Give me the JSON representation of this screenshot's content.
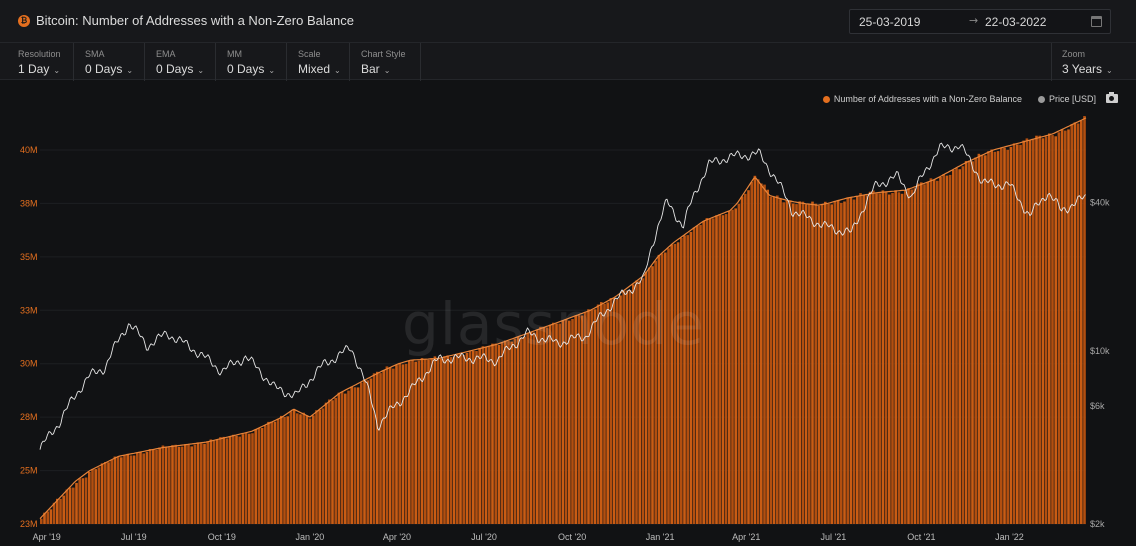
{
  "header": {
    "title": "Bitcoin: Number of Addresses with a Non-Zero Balance",
    "asset_symbol": "₿",
    "date_from": "25-03-2019",
    "date_to": "22-03-2022",
    "arrow": "→"
  },
  "controls": [
    {
      "label": "Resolution",
      "value": "1 Day"
    },
    {
      "label": "SMA",
      "value": "0 Days"
    },
    {
      "label": "EMA",
      "value": "0 Days"
    },
    {
      "label": "MM",
      "value": "0 Days"
    },
    {
      "label": "Scale",
      "value": "Mixed"
    },
    {
      "label": "Chart Style",
      "value": "Bar"
    }
  ],
  "zoom": {
    "label": "Zoom",
    "value": "3 Years"
  },
  "chevron": "⌄",
  "watermark": "glassnode",
  "colors": {
    "addresses": "#e46f1f",
    "price": "#e0e0e0",
    "background": "#111214"
  },
  "chart_data": {
    "type": "bar",
    "x_axis": {
      "type": "date",
      "range": [
        "2019-03-25",
        "2022-03-22"
      ],
      "ticks": [
        "Apr '19",
        "Jul '19",
        "Oct '19",
        "Jan '20",
        "Apr '20",
        "Jul '20",
        "Oct '20",
        "Jan '21",
        "Apr '21",
        "Jul '21",
        "Oct '21",
        "Jan '22"
      ]
    },
    "y_left": {
      "ticks": [
        "23M",
        "25M",
        "28M",
        "30M",
        "33M",
        "35M",
        "38M",
        "40M"
      ],
      "range": [
        23000000,
        41500000
      ],
      "scale": "linear"
    },
    "y_right": {
      "ticks": [
        "$2k",
        "$6k",
        "$10k",
        "$40k"
      ],
      "scale": "log",
      "range": [
        2000,
        80000
      ]
    },
    "legend": {
      "position": "top-right"
    },
    "series": [
      {
        "name": "Number of Addresses with a Non-Zero Balance",
        "axis": "left",
        "style": "bar",
        "points": [
          [
            "2019-03-25",
            23.2
          ],
          [
            "2019-05-01",
            24.6
          ],
          [
            "2019-06-15",
            25.8
          ],
          [
            "2019-08-01",
            26.3
          ],
          [
            "2019-09-15",
            26.6
          ],
          [
            "2019-11-01",
            27.2
          ],
          [
            "2019-12-15",
            28.3
          ],
          [
            "2020-01-01",
            28.0
          ],
          [
            "2020-02-01",
            28.9
          ],
          [
            "2020-03-15",
            29.7
          ],
          [
            "2020-04-15",
            30.2
          ],
          [
            "2020-05-15",
            30.3
          ],
          [
            "2020-06-15",
            30.7
          ],
          [
            "2020-07-15",
            31.1
          ],
          [
            "2020-08-15",
            31.7
          ],
          [
            "2020-09-15",
            32.3
          ],
          [
            "2020-10-15",
            32.9
          ],
          [
            "2020-11-15",
            33.5
          ],
          [
            "2020-12-15",
            34.3
          ],
          [
            "2021-01-15",
            35.8
          ],
          [
            "2021-02-15",
            37.0
          ],
          [
            "2021-03-15",
            37.6
          ],
          [
            "2021-04-10",
            39.0
          ],
          [
            "2021-04-25",
            38.3
          ],
          [
            "2021-05-15",
            38.1
          ],
          [
            "2021-06-15",
            37.9
          ],
          [
            "2021-07-15",
            38.2
          ],
          [
            "2021-08-15",
            38.4
          ],
          [
            "2021-09-15",
            38.5
          ],
          [
            "2021-10-15",
            38.9
          ],
          [
            "2021-11-15",
            39.5
          ],
          [
            "2021-12-15",
            40.0
          ],
          [
            "2022-01-15",
            40.3
          ],
          [
            "2022-02-15",
            40.6
          ],
          [
            "2022-03-22",
            41.2
          ]
        ]
      },
      {
        "name": "Price [USD]",
        "axis": "right",
        "style": "line",
        "points": [
          [
            "2019-03-25",
            4000
          ],
          [
            "2019-04-15",
            5200
          ],
          [
            "2019-05-15",
            7900
          ],
          [
            "2019-06-01",
            8600
          ],
          [
            "2019-06-26",
            13000
          ],
          [
            "2019-07-15",
            10500
          ],
          [
            "2019-08-05",
            11800
          ],
          [
            "2019-09-01",
            10200
          ],
          [
            "2019-10-01",
            8300
          ],
          [
            "2019-10-26",
            9500
          ],
          [
            "2019-11-25",
            7100
          ],
          [
            "2019-12-18",
            6600
          ],
          [
            "2020-01-15",
            8800
          ],
          [
            "2020-02-13",
            10300
          ],
          [
            "2020-03-12",
            5000
          ],
          [
            "2020-04-15",
            6900
          ],
          [
            "2020-05-15",
            9300
          ],
          [
            "2020-06-15",
            9400
          ],
          [
            "2020-07-15",
            9200
          ],
          [
            "2020-08-15",
            11800
          ],
          [
            "2020-09-15",
            10800
          ],
          [
            "2020-10-15",
            11500
          ],
          [
            "2020-11-15",
            16000
          ],
          [
            "2020-12-15",
            19500
          ],
          [
            "2021-01-08",
            40000
          ],
          [
            "2021-01-25",
            32000
          ],
          [
            "2021-02-21",
            57000
          ],
          [
            "2021-03-13",
            61000
          ],
          [
            "2021-04-14",
            63000
          ],
          [
            "2021-05-19",
            37000
          ],
          [
            "2021-06-22",
            32000
          ],
          [
            "2021-07-20",
            30000
          ],
          [
            "2021-08-15",
            47000
          ],
          [
            "2021-09-06",
            51000
          ],
          [
            "2021-09-21",
            42000
          ],
          [
            "2021-10-20",
            66000
          ],
          [
            "2021-11-10",
            68000
          ],
          [
            "2021-12-04",
            48000
          ],
          [
            "2022-01-01",
            47000
          ],
          [
            "2022-01-22",
            35000
          ],
          [
            "2022-02-10",
            44000
          ],
          [
            "2022-02-24",
            37000
          ],
          [
            "2022-03-22",
            42000
          ]
        ]
      }
    ]
  }
}
